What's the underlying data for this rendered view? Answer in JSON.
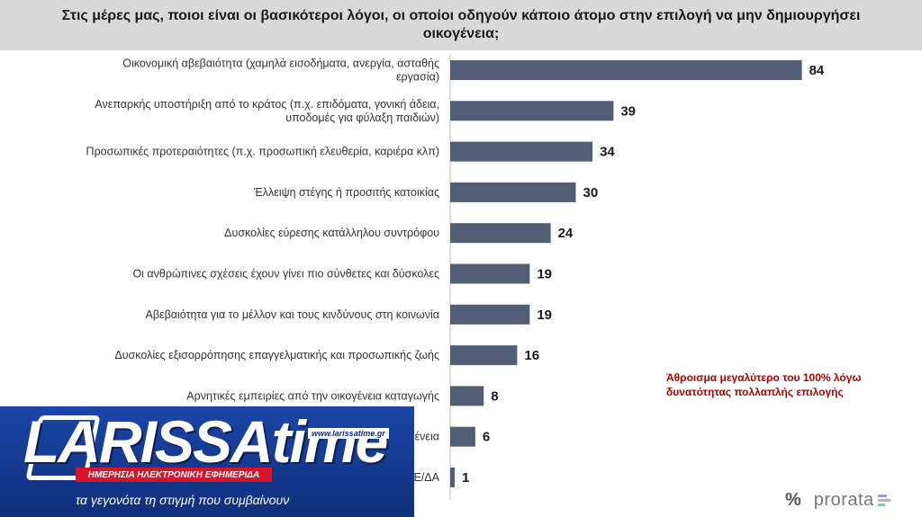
{
  "header": {
    "title": "Στις μέρες μας, ποιοι είναι οι βασικότεροι λόγοι, οι οποίοι οδηγούν κάποιο άτομο στην επιλογή να μην δημιουργήσει οικογένεια;"
  },
  "chart_data": {
    "type": "bar",
    "orientation": "horizontal",
    "title": "Στις μέρες μας, ποιοι είναι οι βασικότεροι λόγοι, οι οποίοι οδηγούν κάποιο άτομο στην επιλογή να μην δημιουργήσει οικογένεια;",
    "categories": [
      "Οικονομική αβεβαιότητα (χαμηλά εισοδήματα, ανεργία, ασταθής εργασία)",
      "Ανεπαρκής υποστήριξη από το κράτος (π.χ. επιδόματα, γονική άδεια, υποδομές για φύλαξη παιδιών)",
      "Προσωπικές προτεραιότητες (π.χ. προσωπική ελευθερία, καριέρα κλπ)",
      "Έλλειψη στέγης ή προσιτής κατοικίας",
      "Δυσκολίες εύρεσης κατάλληλου συντρόφου",
      "Οι ανθρώπινες σχέσεις έχουν γίνει πιο σύνθετες και δύσκολες",
      "Αβεβαιότητα για το μέλλον και τους κινδύνους στη κοινωνία",
      "Δυσκολίες εξισορρόπησης επαγγελματικής και προσωπικής ζωής",
      "Αρνητικές εμπειρίες από την οικογένεια καταγωγής",
      "ένεια",
      "Ε/ΔΑ"
    ],
    "values": [
      84,
      39,
      34,
      30,
      24,
      19,
      19,
      16,
      8,
      6,
      1
    ],
    "xlim": [
      0,
      100
    ],
    "bar_color": "#515e73",
    "grid": false,
    "legend": "none",
    "annotation": "Άθροισμα μεγαλύτερο του 100% λόγω δυνατότητας πολλαπλής επιλογής"
  },
  "logo": {
    "name": "LARISSAtime",
    "url": "www.larissatime.gr",
    "tagline": "ΗΜΕΡΗΣΙΑ ΗΛΕΚΤΡΟΝΙΚΗ ΕΦΗΜΕΡΙΔΑ",
    "slogan": "τα γεγονότα τη στιγμή που συμβαίνουν"
  },
  "brand": {
    "symbol": "%",
    "name": "prorata"
  }
}
